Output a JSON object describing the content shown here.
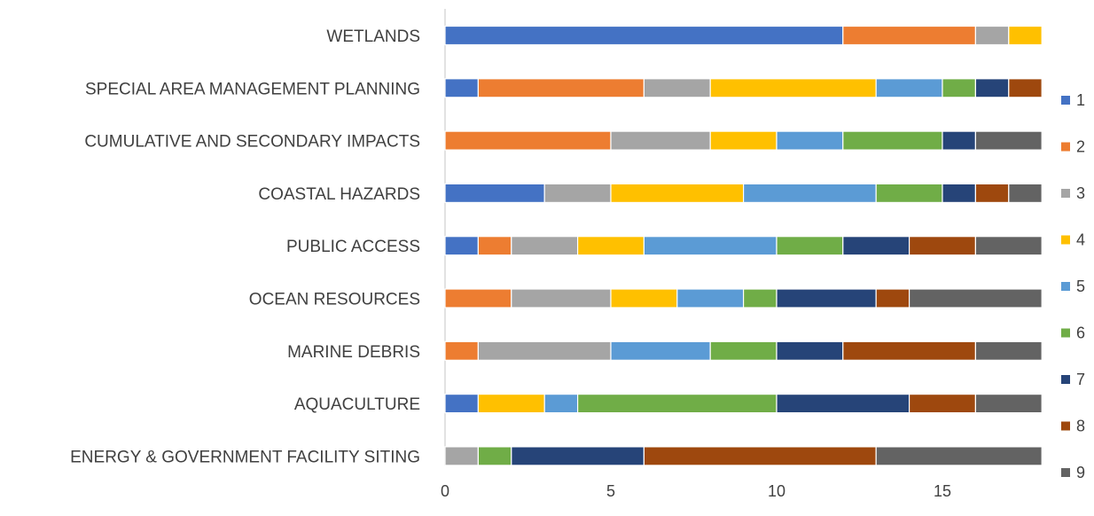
{
  "chart_data": {
    "type": "bar",
    "orientation": "horizontal",
    "stacked": true,
    "title": "",
    "xlabel": "",
    "ylabel": "",
    "xlim": [
      0,
      18
    ],
    "xticks": [
      0,
      5,
      10,
      15
    ],
    "grid": false,
    "legend_position": "right",
    "categories": [
      "WETLANDS",
      "SPECIAL AREA MANAGEMENT PLANNING",
      "CUMULATIVE AND SECONDARY IMPACTS",
      "COASTAL HAZARDS",
      "PUBLIC ACCESS",
      "OCEAN RESOURCES",
      "MARINE DEBRIS",
      "AQUACULTURE",
      "ENERGY & GOVERNMENT FACILITY SITING"
    ],
    "series": [
      {
        "name": "1",
        "color": "#4472C4",
        "values": [
          12,
          1,
          0,
          3,
          1,
          0,
          0,
          1,
          0
        ]
      },
      {
        "name": "2",
        "color": "#ED7D31",
        "values": [
          4,
          5,
          5,
          0,
          1,
          2,
          1,
          0,
          0
        ]
      },
      {
        "name": "3",
        "color": "#A5A5A5",
        "values": [
          1,
          2,
          3,
          2,
          2,
          3,
          4,
          0,
          1
        ]
      },
      {
        "name": "4",
        "color": "#FFC000",
        "values": [
          1,
          5,
          2,
          4,
          2,
          2,
          0,
          2,
          0
        ]
      },
      {
        "name": "5",
        "color": "#5B9BD5",
        "values": [
          0,
          2,
          2,
          4,
          4,
          2,
          3,
          1,
          0
        ]
      },
      {
        "name": "6",
        "color": "#70AD47",
        "values": [
          0,
          1,
          3,
          2,
          2,
          1,
          2,
          6,
          1
        ]
      },
      {
        "name": "7",
        "color": "#264478",
        "values": [
          0,
          1,
          1,
          1,
          2,
          3,
          2,
          4,
          4
        ]
      },
      {
        "name": "8",
        "color": "#9E480E",
        "values": [
          0,
          1,
          0,
          1,
          2,
          1,
          4,
          2,
          7
        ]
      },
      {
        "name": "9",
        "color": "#636363",
        "values": [
          0,
          0,
          2,
          1,
          2,
          4,
          2,
          2,
          5
        ]
      }
    ]
  }
}
